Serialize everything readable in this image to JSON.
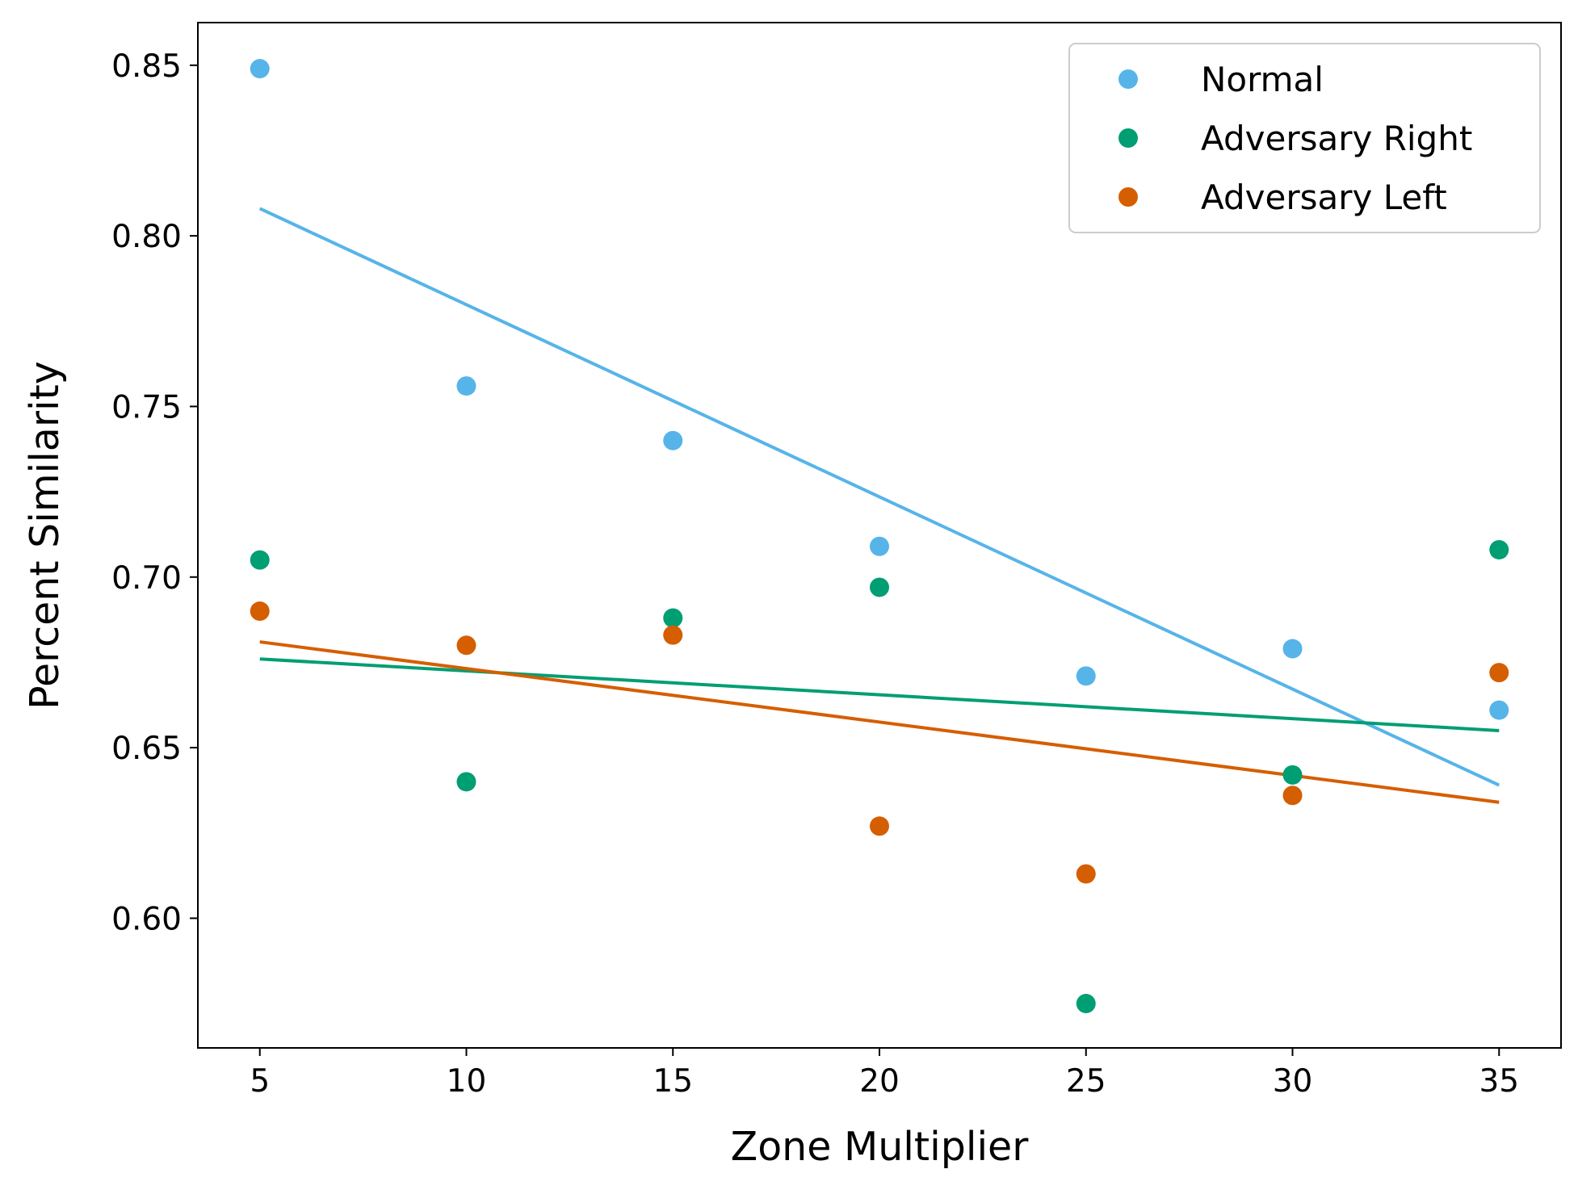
{
  "chart_data": {
    "type": "scatter",
    "xlabel": "Zone Multiplier",
    "ylabel": "Percent Similarity",
    "xlim": [
      3.5,
      36.5
    ],
    "ylim": [
      0.562,
      0.8625
    ],
    "x_ticks": [
      5,
      10,
      15,
      20,
      25,
      30,
      35
    ],
    "y_ticks": [
      0.6,
      0.65,
      0.7,
      0.75,
      0.8,
      0.85
    ],
    "grid": false,
    "legend_position": "top-right",
    "series": [
      {
        "name": "Normal",
        "color": "#56B4E9",
        "x": [
          5,
          10,
          15,
          20,
          25,
          30,
          35
        ],
        "y": [
          0.849,
          0.756,
          0.74,
          0.709,
          0.671,
          0.679,
          0.661
        ],
        "trend": {
          "x": [
            5,
            35
          ],
          "y": [
            0.808,
            0.639
          ]
        }
      },
      {
        "name": "Adversary Right",
        "color": "#009E73",
        "x": [
          5,
          10,
          15,
          20,
          25,
          30,
          35
        ],
        "y": [
          0.705,
          0.64,
          0.688,
          0.697,
          0.575,
          0.642,
          0.708
        ],
        "trend": {
          "x": [
            5,
            35
          ],
          "y": [
            0.676,
            0.655
          ]
        }
      },
      {
        "name": "Adversary Left",
        "color": "#D55E00",
        "x": [
          5,
          10,
          15,
          20,
          25,
          30,
          35
        ],
        "y": [
          0.69,
          0.68,
          0.683,
          0.627,
          0.613,
          0.636,
          0.672
        ],
        "trend": {
          "x": [
            5,
            35
          ],
          "y": [
            0.681,
            0.634
          ]
        }
      }
    ]
  }
}
